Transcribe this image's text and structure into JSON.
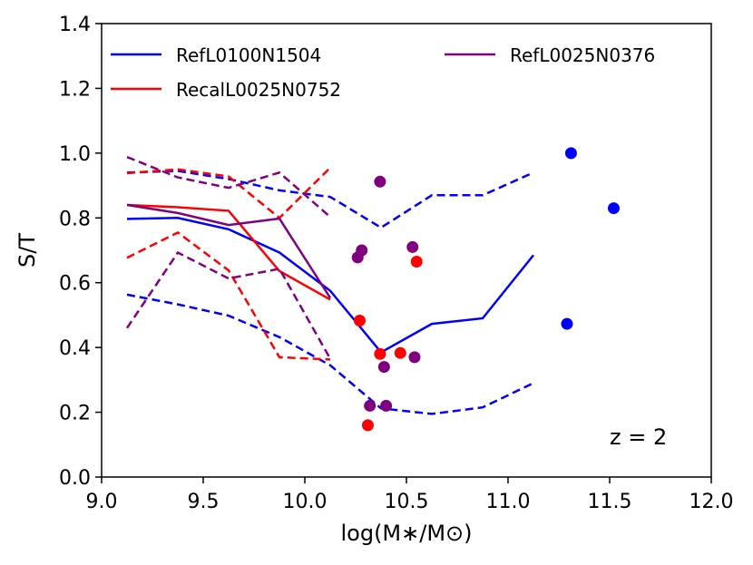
{
  "chart_data": {
    "type": "line",
    "xlabel": "log(M∗/M⊙)",
    "ylabel": "S/T",
    "xlim": [
      9.0,
      12.0
    ],
    "ylim": [
      0.0,
      1.4
    ],
    "xticks": [
      9.0,
      9.5,
      10.0,
      10.5,
      11.0,
      11.5,
      12.0
    ],
    "xtick_labels": [
      "9.0",
      "9.5",
      "10.0",
      "10.5",
      "11.0",
      "11.5",
      "12.0"
    ],
    "yticks": [
      0.0,
      0.2,
      0.4,
      0.6,
      0.8,
      1.0,
      1.2,
      1.4
    ],
    "ytick_labels": [
      "0.0",
      "0.2",
      "0.4",
      "0.6",
      "0.8",
      "1.0",
      "1.2",
      "1.4"
    ],
    "annotation": "z = 2",
    "legend_location": "top",
    "colors": {
      "RefL0100N1504": "#0000ff",
      "RecalL0025N0752": "#ff0000",
      "RefL0025N0376": "#800080"
    },
    "series": [
      {
        "name": "RefL0100N1504",
        "color": "#0000ff",
        "median": {
          "x": [
            9.125,
            9.375,
            9.625,
            9.875,
            10.125,
            10.375,
            10.625,
            10.875,
            11.125
          ],
          "y": [
            0.797,
            0.8,
            0.765,
            0.693,
            0.575,
            0.385,
            0.473,
            0.49,
            0.685
          ]
        },
        "upper": {
          "x": [
            9.125,
            9.375,
            9.625,
            9.875,
            10.125,
            10.375,
            10.625,
            10.875,
            11.125
          ],
          "y": [
            0.94,
            0.945,
            0.92,
            0.885,
            0.865,
            0.77,
            0.87,
            0.87,
            0.94
          ]
        },
        "lower": {
          "x": [
            9.125,
            9.375,
            9.625,
            9.875,
            10.125,
            10.375,
            10.625,
            10.875,
            11.125
          ],
          "y": [
            0.563,
            0.533,
            0.498,
            0.432,
            0.345,
            0.212,
            0.195,
            0.215,
            0.29
          ]
        },
        "points": [
          {
            "x": 11.31,
            "y": 1.0
          },
          {
            "x": 11.52,
            "y": 0.83
          },
          {
            "x": 11.29,
            "y": 0.473
          }
        ]
      },
      {
        "name": "RecalL0025N0752",
        "color": "#ff0000",
        "median": {
          "x": [
            9.125,
            9.375,
            9.625,
            9.875,
            10.125
          ],
          "y": [
            0.84,
            0.833,
            0.822,
            0.636,
            0.548
          ]
        },
        "upper": {
          "x": [
            9.125,
            9.375,
            9.625,
            9.875,
            10.125
          ],
          "y": [
            0.938,
            0.95,
            0.928,
            0.8,
            0.955
          ]
        },
        "lower": {
          "x": [
            9.125,
            9.375,
            9.625,
            9.875,
            10.125
          ],
          "y": [
            0.677,
            0.755,
            0.638,
            0.37,
            0.363
          ]
        },
        "points": [
          {
            "x": 10.27,
            "y": 0.483
          },
          {
            "x": 10.37,
            "y": 0.38
          },
          {
            "x": 10.47,
            "y": 0.383
          },
          {
            "x": 10.55,
            "y": 0.665
          },
          {
            "x": 10.31,
            "y": 0.16
          }
        ]
      },
      {
        "name": "RefL0025N0376",
        "color": "#800080",
        "median": {
          "x": [
            9.125,
            9.375,
            9.625,
            9.875,
            10.125
          ],
          "y": [
            0.84,
            0.815,
            0.778,
            0.798,
            0.553
          ]
        },
        "upper": {
          "x": [
            9.125,
            9.375,
            9.625,
            9.875,
            10.125
          ],
          "y": [
            0.988,
            0.925,
            0.893,
            0.94,
            0.803
          ]
        },
        "lower": {
          "x": [
            9.125,
            9.375,
            9.625,
            9.875,
            10.125
          ],
          "y": [
            0.46,
            0.693,
            0.613,
            0.643,
            0.365
          ]
        },
        "points": [
          {
            "x": 10.37,
            "y": 0.912
          },
          {
            "x": 10.28,
            "y": 0.7
          },
          {
            "x": 10.26,
            "y": 0.678
          },
          {
            "x": 10.53,
            "y": 0.71
          },
          {
            "x": 10.39,
            "y": 0.34
          },
          {
            "x": 10.54,
            "y": 0.37
          },
          {
            "x": 10.32,
            "y": 0.22
          },
          {
            "x": 10.4,
            "y": 0.22
          }
        ]
      }
    ]
  }
}
